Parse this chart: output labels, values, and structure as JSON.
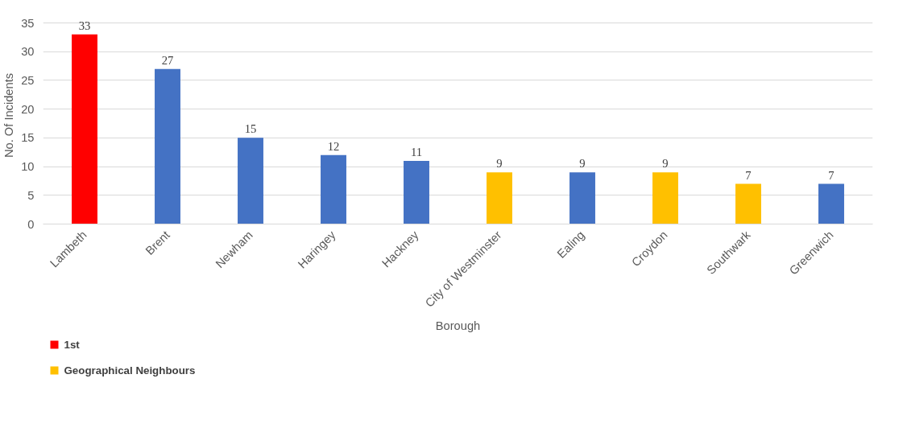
{
  "chart_data": {
    "type": "bar",
    "xlabel": "Borough",
    "ylabel": "No. Of Incidents",
    "categories": [
      "Lambeth",
      "Brent",
      "Newham",
      "Haringey",
      "Hackney",
      "City of Westminster",
      "Ealing",
      "Croydon",
      "Southwark",
      "Greenwich"
    ],
    "series": [
      {
        "name": "1st",
        "color": "#ff0000",
        "values": [
          33,
          null,
          null,
          null,
          null,
          null,
          null,
          null,
          null,
          null
        ]
      },
      {
        "color": "#4472c4",
        "values": [
          null,
          27,
          15,
          12,
          11,
          null,
          9,
          null,
          null,
          7
        ]
      },
      {
        "name": "Geographical Neighbours",
        "color": "#ffc000",
        "values": [
          null,
          null,
          null,
          null,
          null,
          9,
          null,
          9,
          7,
          null
        ]
      }
    ],
    "ylim": [
      0,
      35
    ],
    "yticks": [
      0,
      5,
      10,
      15,
      20,
      25,
      30,
      35
    ],
    "grid": "y",
    "legend": "bottom left",
    "data_labels": true
  }
}
